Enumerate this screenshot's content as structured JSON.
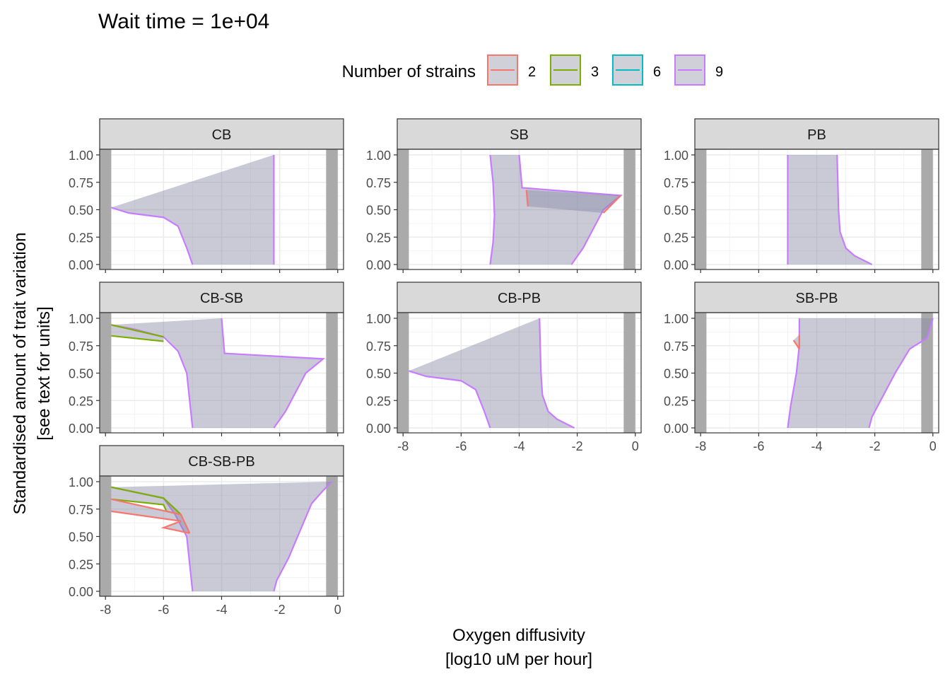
{
  "title": "Wait time = 1e+04",
  "legend": {
    "title": "Number of strains",
    "entries": [
      {
        "label": "2",
        "color": "#F8766D"
      },
      {
        "label": "3",
        "color": "#7CAE00"
      },
      {
        "label": "6",
        "color": "#00BFC4"
      },
      {
        "label": "9",
        "color": "#C77CFF"
      }
    ]
  },
  "xlabel": [
    "Oxygen diffusivity",
    "[log10 uM per hour]"
  ],
  "ylabel": [
    "Standardised amount of trait variation",
    "[see text for units]"
  ],
  "x_ticks": [
    "-8",
    "-6",
    "-4",
    "-2",
    "0"
  ],
  "y_ticks": [
    "0.00",
    "0.25",
    "0.50",
    "0.75",
    "1.00"
  ],
  "chart_data": {
    "type": "area",
    "title": "Wait time = 1e+04",
    "xlabel": "Oxygen diffusivity [log10 uM per hour]",
    "ylabel": "Standardised amount of trait variation [see text for units]",
    "xlim": [
      -8.2,
      0.2
    ],
    "ylim": [
      0,
      1
    ],
    "x_ticks": [
      -8,
      -6,
      -4,
      -2,
      0
    ],
    "y_ticks": [
      0,
      0.25,
      0.5,
      0.75,
      1
    ],
    "grid": true,
    "legend_position": "top",
    "fill_color": "#8A8AA6",
    "band_color": "#AAAAAA",
    "bands": [
      [
        -8.2,
        -7.8
      ],
      [
        -0.4,
        0.0
      ]
    ],
    "facets": [
      {
        "name": "CB",
        "regions": [
          {
            "strains": "9",
            "left": [
              [
                -7.8,
                0.52
              ],
              [
                -7.2,
                0.47
              ],
              [
                -6.0,
                0.43
              ],
              [
                -5.5,
                0.35
              ],
              [
                -5.2,
                0.15
              ],
              [
                -5.0,
                0.0
              ]
            ],
            "right": [
              [
                -2.2,
                1.0
              ],
              [
                -2.2,
                0.0
              ]
            ],
            "top": 1.0
          }
        ]
      },
      {
        "name": "SB",
        "regions": [
          {
            "strains": "9",
            "left": [
              [
                -5.0,
                1.0
              ],
              [
                -4.9,
                0.75
              ],
              [
                -4.85,
                0.45
              ],
              [
                -4.9,
                0.2
              ],
              [
                -5.0,
                0.0
              ]
            ],
            "right": [
              [
                -4.0,
                1.0
              ],
              [
                -3.9,
                0.7
              ],
              [
                -0.5,
                0.63
              ],
              [
                -1.1,
                0.5
              ],
              [
                -1.4,
                0.35
              ],
              [
                -1.8,
                0.15
              ],
              [
                -2.2,
                0.0
              ]
            ],
            "top": 1.0
          },
          {
            "strains": "2",
            "left": [
              [
                -3.75,
                0.68
              ],
              [
                -3.7,
                0.53
              ]
            ],
            "right": [
              [
                -0.5,
                0.63
              ],
              [
                -1.1,
                0.47
              ]
            ],
            "top": 0.68
          }
        ]
      },
      {
        "name": "PB",
        "regions": [
          {
            "strains": "9",
            "left": [
              [
                -5.0,
                1.0
              ],
              [
                -5.0,
                0.0
              ]
            ],
            "right": [
              [
                -3.3,
                1.0
              ],
              [
                -3.25,
                0.5
              ],
              [
                -3.2,
                0.3
              ],
              [
                -3.0,
                0.15
              ],
              [
                -2.7,
                0.08
              ],
              [
                -2.1,
                0.0
              ]
            ],
            "top": 1.0
          }
        ]
      },
      {
        "name": "CB-SB",
        "regions": [
          {
            "strains": "9",
            "left": [
              [
                -7.8,
                0.94
              ],
              [
                -7.0,
                0.9
              ],
              [
                -6.0,
                0.83
              ],
              [
                -5.5,
                0.7
              ],
              [
                -5.2,
                0.5
              ],
              [
                -5.0,
                0.0
              ]
            ],
            "right": [
              [
                -4.0,
                1.0
              ],
              [
                -3.9,
                0.68
              ],
              [
                -0.5,
                0.63
              ],
              [
                -1.1,
                0.5
              ],
              [
                -1.4,
                0.35
              ],
              [
                -1.8,
                0.15
              ],
              [
                -2.2,
                0.0
              ]
            ],
            "top": 1.0
          },
          {
            "strains": "3",
            "left": [
              [
                -7.8,
                0.84
              ],
              [
                -6.0,
                0.79
              ]
            ],
            "right": [
              [
                -7.8,
                0.94
              ],
              [
                -6.0,
                0.83
              ]
            ],
            "top": 0.94
          }
        ]
      },
      {
        "name": "CB-PB",
        "regions": [
          {
            "strains": "9",
            "left": [
              [
                -7.8,
                0.52
              ],
              [
                -7.2,
                0.47
              ],
              [
                -6.0,
                0.43
              ],
              [
                -5.5,
                0.35
              ],
              [
                -5.2,
                0.15
              ],
              [
                -5.0,
                0.0
              ]
            ],
            "right": [
              [
                -3.3,
                1.0
              ],
              [
                -3.25,
                0.5
              ],
              [
                -3.2,
                0.3
              ],
              [
                -3.0,
                0.15
              ],
              [
                -2.7,
                0.08
              ],
              [
                -2.1,
                0.0
              ]
            ],
            "top": 1.0
          }
        ]
      },
      {
        "name": "SB-PB",
        "regions": [
          {
            "strains": "9",
            "left": [
              [
                -4.6,
                1.0
              ],
              [
                -4.6,
                0.75
              ],
              [
                -4.7,
                0.5
              ],
              [
                -4.9,
                0.2
              ],
              [
                -5.0,
                0.0
              ]
            ],
            "right": [
              [
                0.0,
                1.0
              ],
              [
                -0.2,
                0.82
              ],
              [
                -0.8,
                0.72
              ],
              [
                -1.3,
                0.5
              ],
              [
                -1.7,
                0.3
              ],
              [
                -2.1,
                0.1
              ],
              [
                -2.2,
                0.0
              ]
            ],
            "top": 1.0
          },
          {
            "strains": "2",
            "left": [
              [
                -4.8,
                0.8
              ],
              [
                -4.6,
                0.72
              ]
            ],
            "right": [
              [
                -4.6,
                0.85
              ],
              [
                -4.6,
                0.72
              ]
            ],
            "top": 0.85
          }
        ]
      },
      {
        "name": "CB-SB-PB",
        "regions": [
          {
            "strains": "9",
            "left": [
              [
                -7.8,
                0.95
              ],
              [
                -6.0,
                0.85
              ],
              [
                -5.6,
                0.7
              ],
              [
                -5.2,
                0.5
              ],
              [
                -5.0,
                0.0
              ]
            ],
            "right": [
              [
                -0.2,
                1.0
              ],
              [
                -0.5,
                0.92
              ],
              [
                -0.9,
                0.8
              ],
              [
                -1.3,
                0.55
              ],
              [
                -1.7,
                0.3
              ],
              [
                -2.1,
                0.1
              ],
              [
                -2.2,
                0.0
              ]
            ],
            "top": 1.0
          },
          {
            "strains": "3",
            "left": [
              [
                -7.8,
                0.84
              ],
              [
                -6.0,
                0.79
              ],
              [
                -5.9,
                0.73
              ],
              [
                -5.4,
                0.7
              ]
            ],
            "right": [
              [
                -7.8,
                0.95
              ],
              [
                -6.0,
                0.85
              ],
              [
                -5.4,
                0.7
              ]
            ],
            "top": 0.95
          },
          {
            "strains": "2",
            "left": [
              [
                -7.8,
                0.73
              ],
              [
                -5.4,
                0.64
              ],
              [
                -6.0,
                0.58
              ],
              [
                -5.1,
                0.53
              ]
            ],
            "right": [
              [
                -7.8,
                0.84
              ],
              [
                -5.4,
                0.7
              ],
              [
                -5.1,
                0.53
              ]
            ],
            "top": 0.84
          }
        ]
      }
    ]
  }
}
